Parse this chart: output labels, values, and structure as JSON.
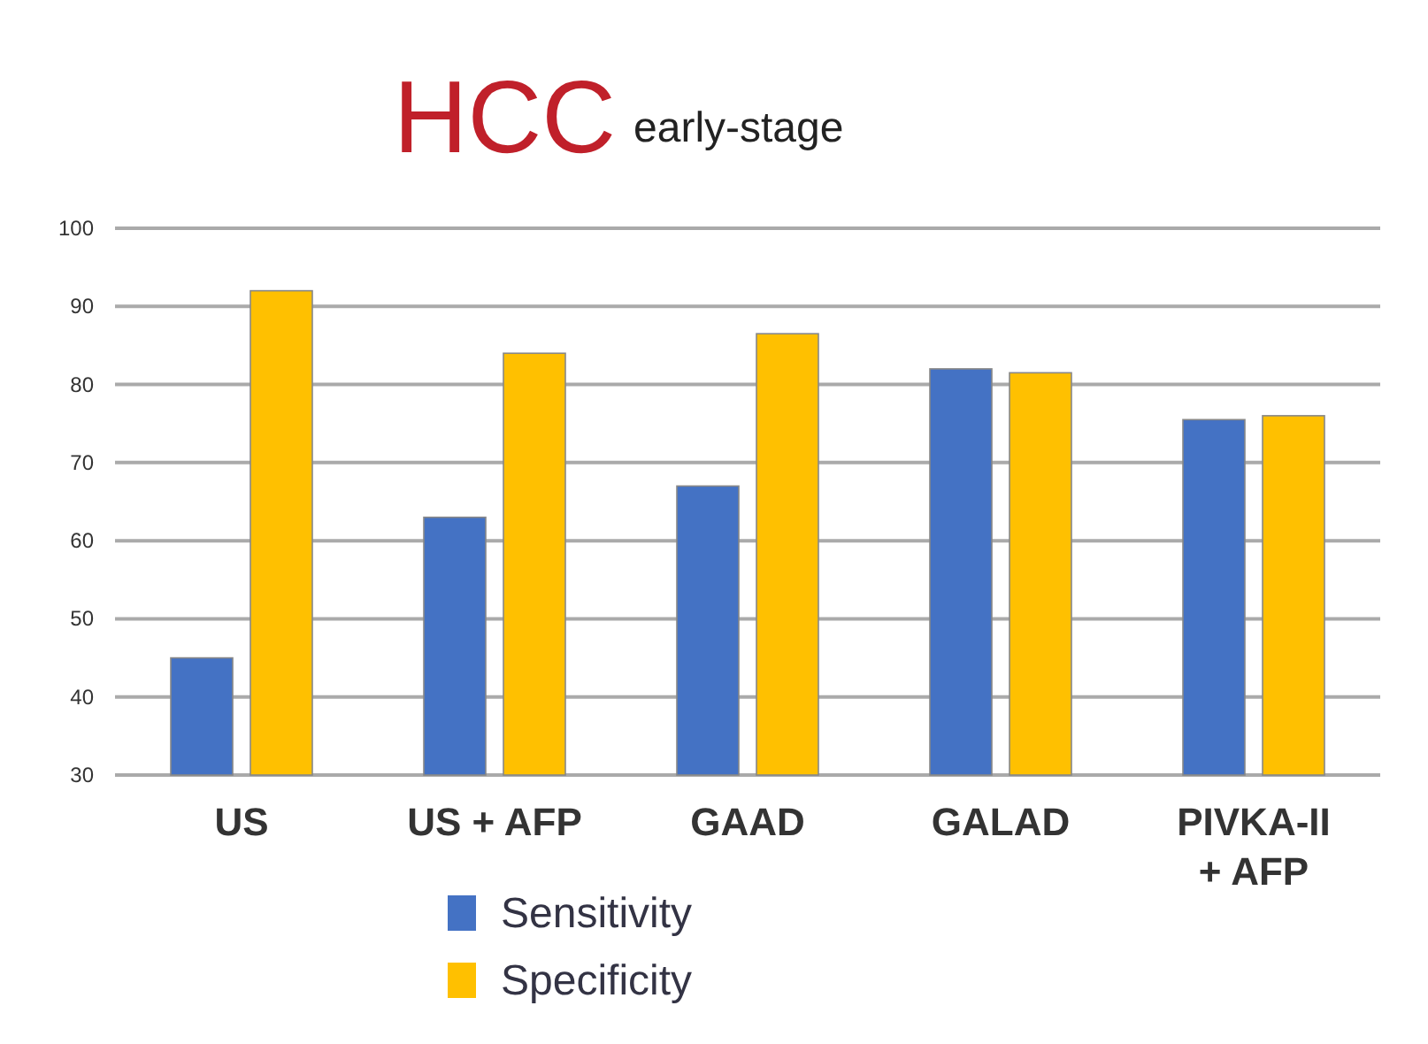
{
  "chart_data": {
    "type": "bar",
    "title": "HCC",
    "subtitle": "early-stage",
    "categories": [
      "US",
      "US + AFP",
      "GAAD",
      "GALAD",
      "PIVKA-II + AFP"
    ],
    "series": [
      {
        "name": "Sensitivity",
        "color": "#4472c4",
        "values": [
          45,
          63,
          67,
          82,
          75.5
        ]
      },
      {
        "name": "Specificity",
        "color": "#ffc000",
        "values": [
          92,
          84,
          86.5,
          81.5,
          76
        ]
      }
    ],
    "ylim": [
      30,
      100
    ],
    "yticks": [
      30,
      40,
      50,
      60,
      70,
      80,
      90,
      100
    ],
    "grid": "y",
    "legend": "bottom"
  }
}
